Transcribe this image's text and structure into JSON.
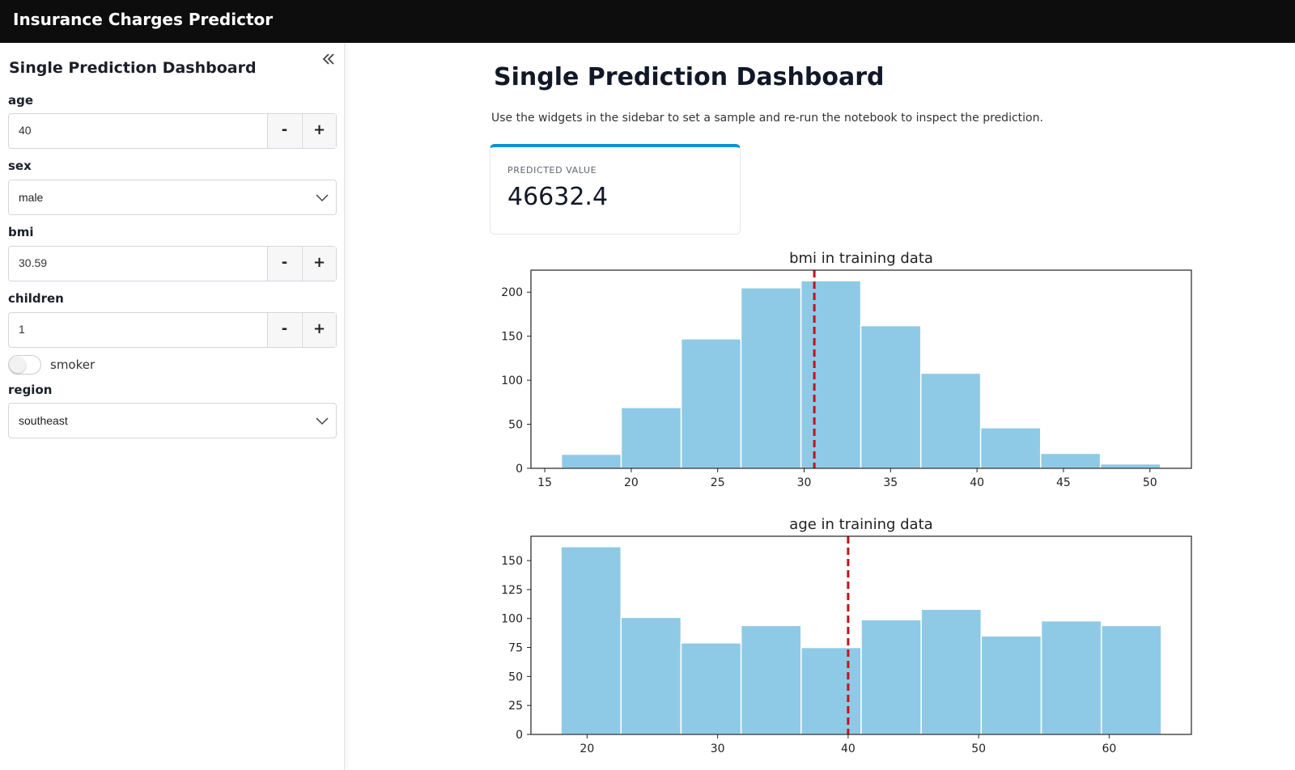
{
  "app": {
    "title": "Insurance Charges Predictor"
  },
  "sidebar": {
    "title": "Single Prediction Dashboard",
    "collapse_icon": "double-chevron-left-icon",
    "fields": {
      "age": {
        "label": "age",
        "value": "40",
        "minus": "-",
        "plus": "+"
      },
      "sex": {
        "label": "sex",
        "value": "male"
      },
      "bmi": {
        "label": "bmi",
        "value": "30.59",
        "minus": "-",
        "plus": "+"
      },
      "children": {
        "label": "children",
        "value": "1",
        "minus": "-",
        "plus": "+"
      },
      "smoker": {
        "label": "smoker",
        "checked": false
      },
      "region": {
        "label": "region",
        "value": "southeast"
      }
    }
  },
  "main": {
    "title": "Single Prediction Dashboard",
    "description": "Use the widgets in the sidebar to set a sample and re-run the notebook to inspect the prediction.",
    "metric": {
      "label": "PREDICTED VALUE",
      "value": "46632.4",
      "accent": "#0a93cf"
    }
  },
  "chart_data": [
    {
      "type": "bar",
      "title": "bmi in training data",
      "xlabel": "",
      "ylabel": "",
      "bin_edges": [
        15.96,
        19.42,
        22.89,
        26.35,
        29.82,
        33.28,
        36.75,
        40.21,
        43.68,
        47.14,
        50.61
      ],
      "values": [
        16,
        69,
        147,
        205,
        213,
        162,
        108,
        46,
        17,
        5
      ],
      "xlim": [
        14.2,
        52.4
      ],
      "ylim": [
        0,
        225
      ],
      "xticks": [
        15,
        20,
        25,
        30,
        35,
        40,
        45,
        50
      ],
      "yticks": [
        0,
        50,
        100,
        150,
        200
      ],
      "marker_value": 30.59,
      "bar_color": "#8ecae6",
      "marker_color": "#c0141c",
      "grid": false
    },
    {
      "type": "bar",
      "title": "age in training data",
      "xlabel": "",
      "ylabel": "",
      "bin_edges": [
        18,
        22.6,
        27.2,
        31.8,
        36.4,
        41,
        45.6,
        50.2,
        54.8,
        59.4,
        64
      ],
      "values": [
        162,
        101,
        79,
        94,
        75,
        99,
        108,
        85,
        98,
        94
      ],
      "xlim": [
        15.7,
        66.3
      ],
      "ylim": [
        0,
        171
      ],
      "xticks": [
        20,
        30,
        40,
        50,
        60
      ],
      "yticks": [
        0,
        25,
        50,
        75,
        100,
        125,
        150
      ],
      "marker_value": 40,
      "bar_color": "#8ecae6",
      "marker_color": "#c0141c",
      "grid": false
    }
  ]
}
